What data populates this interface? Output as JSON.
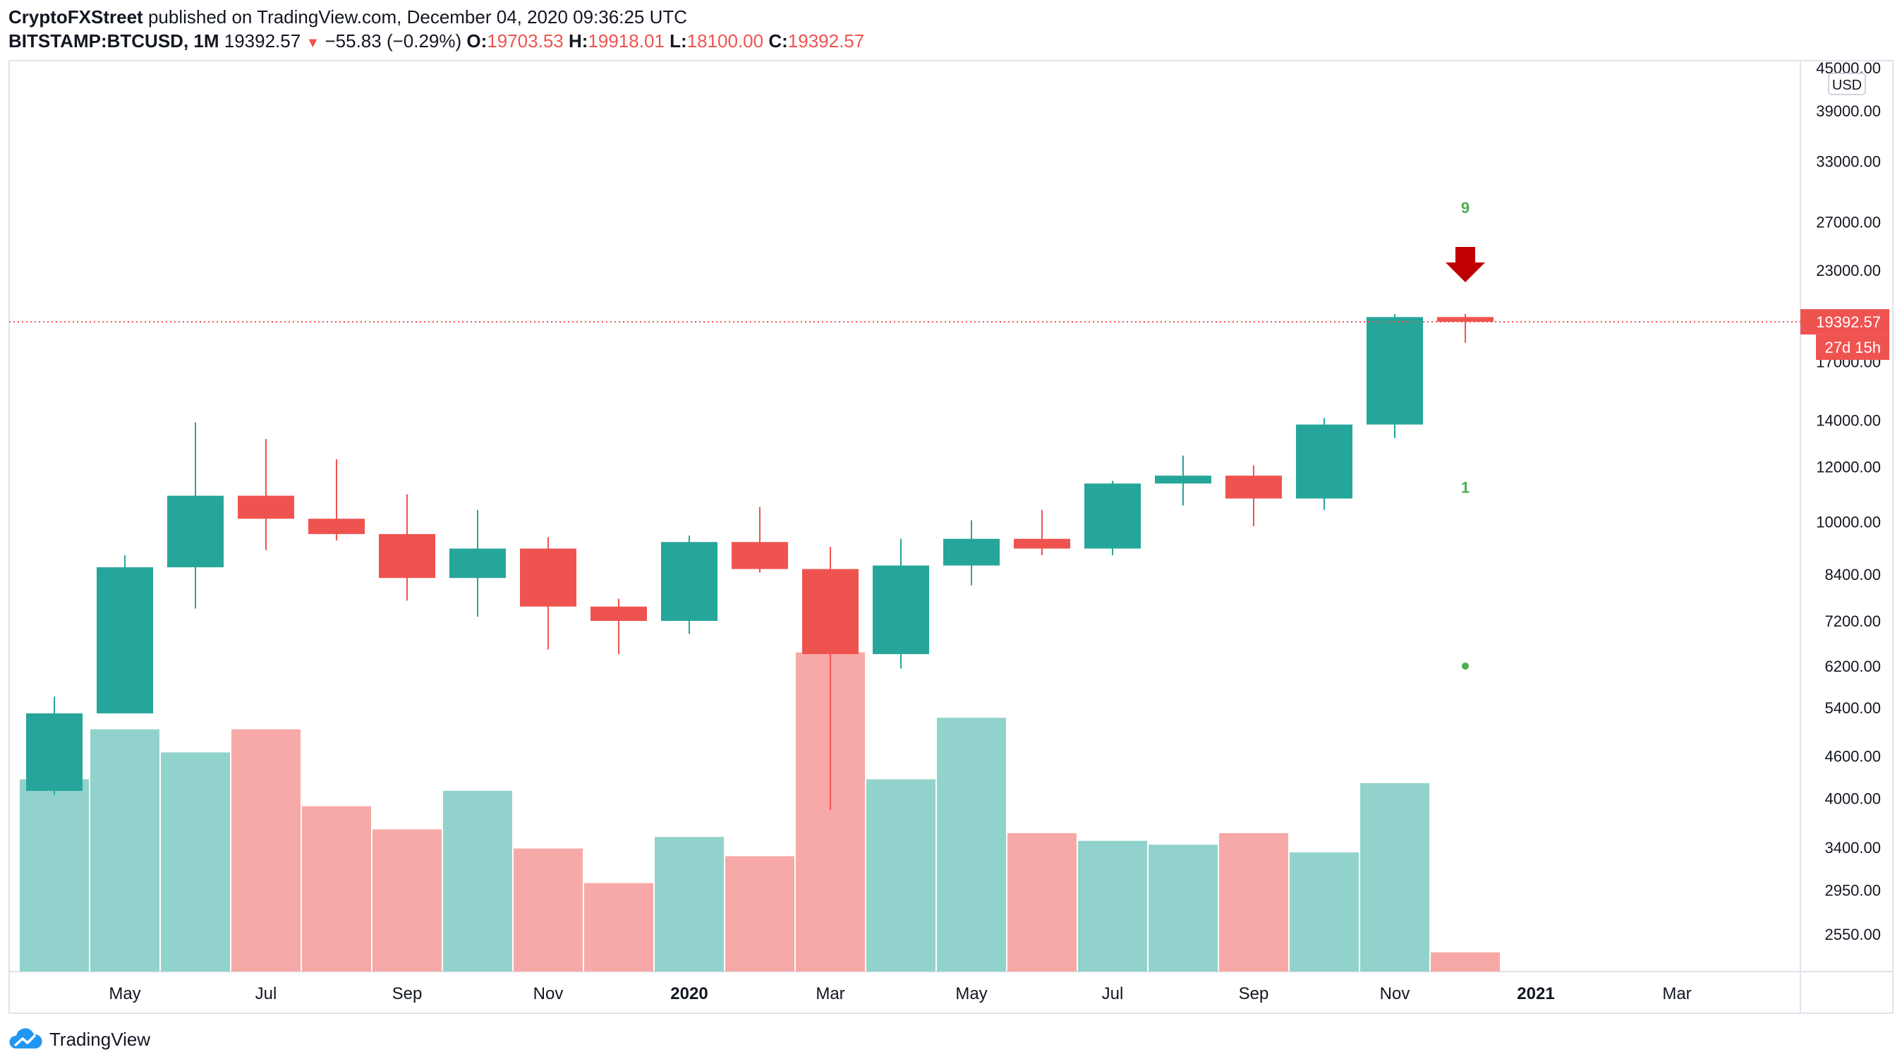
{
  "header": {
    "author": "CryptoFXStreet",
    "published": "published on TradingView.com, December 04, 2020 09:36:25 UTC",
    "symbol": "BITSTAMP:BTCUSD, 1M",
    "last": "19392.57",
    "change": "−55.83 (−0.29%)",
    "change_arrow": "▼",
    "o_label": "O:",
    "o_value": "19703.53",
    "h_label": "H:",
    "h_value": "19918.01",
    "l_label": "L:",
    "l_value": "18100.00",
    "c_label": "C:",
    "c_value": "19392.57"
  },
  "footer": {
    "brand": "TradingView",
    "logo_icon": "tradingview-cloud-icon"
  },
  "chart_data": {
    "type": "candlestick",
    "symbol": "BITSTAMP:BTCUSD",
    "interval": "1M",
    "y_scale": "log",
    "currency": "USD",
    "ylim": [
      2400,
      45000
    ],
    "y_ticks": [
      "45000.00",
      "39000.00",
      "33000.00",
      "27000.00",
      "23000.00",
      "17000.00",
      "14000.00",
      "12000.00",
      "10000.00",
      "8400.00",
      "7200.00",
      "6200.00",
      "5400.00",
      "4600.00",
      "4000.00",
      "3400.00",
      "2950.00",
      "2550.00"
    ],
    "x_ticks": [
      {
        "label": "May",
        "idx": 1,
        "bold": false
      },
      {
        "label": "Jul",
        "idx": 3,
        "bold": false
      },
      {
        "label": "Sep",
        "idx": 5,
        "bold": false
      },
      {
        "label": "Nov",
        "idx": 7,
        "bold": false
      },
      {
        "label": "2020",
        "idx": 9,
        "bold": true
      },
      {
        "label": "Mar",
        "idx": 11,
        "bold": false
      },
      {
        "label": "May",
        "idx": 13,
        "bold": false
      },
      {
        "label": "Jul",
        "idx": 15,
        "bold": false
      },
      {
        "label": "Sep",
        "idx": 17,
        "bold": false
      },
      {
        "label": "Nov",
        "idx": 19,
        "bold": false
      },
      {
        "label": "2021",
        "idx": 21,
        "bold": true
      },
      {
        "label": "Mar",
        "idx": 23,
        "bold": false
      }
    ],
    "candles": [
      {
        "month": "2019-04",
        "open": 4100,
        "high": 5600,
        "low": 4050,
        "close": 5300
      },
      {
        "month": "2019-05",
        "open": 5300,
        "high": 8950,
        "low": 5300,
        "close": 8600
      },
      {
        "month": "2019-06",
        "open": 8600,
        "high": 13900,
        "low": 7500,
        "close": 10900
      },
      {
        "month": "2019-07",
        "open": 10900,
        "high": 13150,
        "low": 9100,
        "close": 10100
      },
      {
        "month": "2019-08",
        "open": 10100,
        "high": 12300,
        "low": 9400,
        "close": 9600
      },
      {
        "month": "2019-09",
        "open": 9600,
        "high": 10950,
        "low": 7700,
        "close": 8300
      },
      {
        "month": "2019-10",
        "open": 8300,
        "high": 10400,
        "low": 7300,
        "close": 9150
      },
      {
        "month": "2019-11",
        "open": 9150,
        "high": 9500,
        "low": 6550,
        "close": 7550
      },
      {
        "month": "2019-12",
        "open": 7550,
        "high": 7750,
        "low": 6450,
        "close": 7200
      },
      {
        "month": "2020-01",
        "open": 7200,
        "high": 9550,
        "low": 6900,
        "close": 9350
      },
      {
        "month": "2020-02",
        "open": 9350,
        "high": 10500,
        "low": 8450,
        "close": 8550
      },
      {
        "month": "2020-03",
        "open": 8550,
        "high": 9200,
        "low": 3850,
        "close": 6450
      },
      {
        "month": "2020-04",
        "open": 6450,
        "high": 9450,
        "low": 6150,
        "close": 8650
      },
      {
        "month": "2020-05",
        "open": 8650,
        "high": 10050,
        "low": 8100,
        "close": 9450
      },
      {
        "month": "2020-06",
        "open": 9450,
        "high": 10400,
        "low": 8950,
        "close": 9150
      },
      {
        "month": "2020-07",
        "open": 9150,
        "high": 11450,
        "low": 8950,
        "close": 11350
      },
      {
        "month": "2020-08",
        "open": 11350,
        "high": 12450,
        "low": 10550,
        "close": 11650
      },
      {
        "month": "2020-09",
        "open": 11650,
        "high": 12050,
        "low": 9850,
        "close": 10800
      },
      {
        "month": "2020-10",
        "open": 10800,
        "high": 14100,
        "low": 10400,
        "close": 13800
      },
      {
        "month": "2020-11",
        "open": 13800,
        "high": 19900,
        "low": 13200,
        "close": 19700
      },
      {
        "month": "2020-12",
        "open": 19703.53,
        "high": 19918.01,
        "low": 18100,
        "close": 19392.57
      }
    ],
    "volume_relative": [
      0.5,
      0.63,
      0.57,
      0.63,
      0.43,
      0.37,
      0.47,
      0.32,
      0.23,
      0.35,
      0.3,
      0.83,
      0.5,
      0.66,
      0.36,
      0.34,
      0.33,
      0.36,
      0.31,
      0.49,
      0.05
    ],
    "last_price_label": "19392.57",
    "countdown_label": "27d 15h",
    "currency_label": "USD",
    "td_sequential": [
      {
        "idx": 20,
        "text": "9",
        "price": 27800
      },
      {
        "idx": 20,
        "text": "1",
        "price": 11000
      }
    ],
    "td_dot": {
      "idx": 20,
      "price": 6200
    },
    "sell_arrow": {
      "idx": 20
    },
    "colors": {
      "up": "#26a69a",
      "down": "#ef5350",
      "up_volume": "#92d2cc",
      "down_volume": "#f7a9a7",
      "td_text": "#4caf50",
      "sell_arrow": "#c00000",
      "price_line": "#ef5350",
      "grid": "#e0e3eb"
    }
  }
}
